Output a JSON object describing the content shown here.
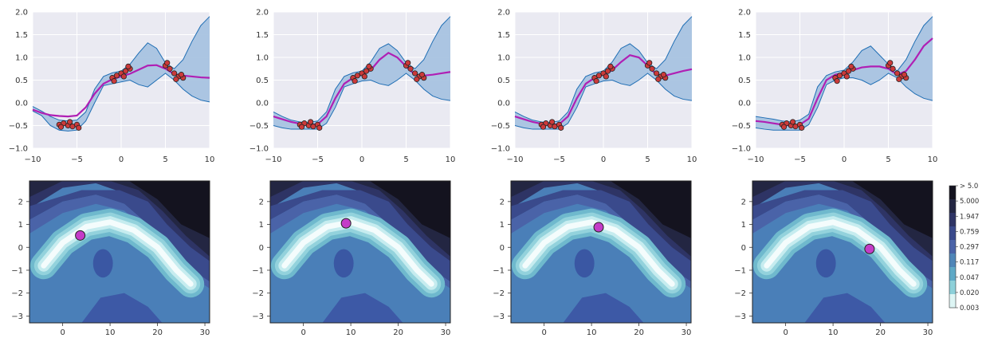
{
  "chart_data": [
    {
      "type": "line",
      "xlim": [
        -10,
        10
      ],
      "ylim": [
        -1.0,
        2.0
      ],
      "xticks": [
        "-10",
        "-5",
        "0",
        "5",
        "10"
      ],
      "yticks": [
        "-1.0",
        "-0.5",
        "0.0",
        "0.5",
        "1.0",
        "1.5",
        "2.0"
      ],
      "grid": true,
      "x": [
        -10,
        -9,
        -8,
        -7,
        -6,
        -5,
        -4,
        -3,
        -2,
        -1,
        0,
        1,
        2,
        3,
        4,
        5,
        6,
        7,
        8,
        9,
        10
      ],
      "mean": [
        -0.15,
        -0.22,
        -0.27,
        -0.29,
        -0.3,
        -0.28,
        -0.1,
        0.2,
        0.42,
        0.52,
        0.58,
        0.64,
        0.73,
        0.82,
        0.83,
        0.75,
        0.63,
        0.6,
        0.58,
        0.56,
        0.55
      ],
      "sample": [
        -0.15,
        -0.22,
        -0.27,
        -0.29,
        -0.3,
        -0.28,
        -0.1,
        0.2,
        0.42,
        0.52,
        0.58,
        0.64,
        0.73,
        0.82,
        0.83,
        0.75,
        0.63,
        0.6,
        0.58,
        0.56,
        0.55
      ],
      "upper": [
        -0.08,
        -0.18,
        -0.3,
        -0.38,
        -0.4,
        -0.38,
        -0.2,
        0.3,
        0.58,
        0.66,
        0.7,
        0.85,
        1.1,
        1.32,
        1.2,
        0.88,
        0.75,
        0.95,
        1.35,
        1.7,
        1.9
      ],
      "lower": [
        -0.18,
        -0.28,
        -0.5,
        -0.6,
        -0.62,
        -0.6,
        -0.4,
        0.0,
        0.38,
        0.42,
        0.46,
        0.5,
        0.4,
        0.35,
        0.5,
        0.65,
        0.5,
        0.3,
        0.15,
        0.06,
        0.02
      ],
      "observations": [
        [
          -7.0,
          -0.48
        ],
        [
          -6.5,
          -0.45
        ],
        [
          -6.0,
          -0.5
        ],
        [
          -5.5,
          -0.52
        ],
        [
          -5.0,
          -0.48
        ],
        [
          -4.8,
          -0.55
        ],
        [
          -6.8,
          -0.53
        ],
        [
          -5.8,
          -0.42
        ],
        [
          -1.0,
          0.55
        ],
        [
          -0.5,
          0.6
        ],
        [
          0.0,
          0.65
        ],
        [
          0.5,
          0.7
        ],
        [
          1.0,
          0.75
        ],
        [
          -0.8,
          0.48
        ],
        [
          0.3,
          0.58
        ],
        [
          0.8,
          0.8
        ],
        [
          5.0,
          0.82
        ],
        [
          5.5,
          0.75
        ],
        [
          6.0,
          0.65
        ],
        [
          6.5,
          0.58
        ],
        [
          7.0,
          0.55
        ],
        [
          5.2,
          0.88
        ],
        [
          6.2,
          0.52
        ],
        [
          6.8,
          0.62
        ]
      ]
    },
    {
      "type": "line",
      "xlim": [
        -10,
        10
      ],
      "ylim": [
        -1.0,
        2.0
      ],
      "xticks": [
        "-10",
        "-5",
        "0",
        "5",
        "10"
      ],
      "yticks": [
        "-1.0",
        "-0.5",
        "0.0",
        "0.5",
        "1.0",
        "1.5",
        "2.0"
      ],
      "grid": true,
      "x": [
        -10,
        -9,
        -8,
        -7,
        -6,
        -5,
        -4,
        -3,
        -2,
        -1,
        0,
        1,
        2,
        3,
        4,
        5,
        6,
        7,
        8,
        9,
        10
      ],
      "mean": [
        -0.3,
        -0.36,
        -0.42,
        -0.46,
        -0.48,
        -0.47,
        -0.3,
        0.1,
        0.42,
        0.55,
        0.62,
        0.72,
        0.95,
        1.1,
        1.0,
        0.8,
        0.62,
        0.6,
        0.62,
        0.65,
        0.68
      ],
      "sample": [
        -0.3,
        -0.36,
        -0.42,
        -0.46,
        -0.48,
        -0.47,
        -0.3,
        0.1,
        0.42,
        0.55,
        0.62,
        0.72,
        0.95,
        1.1,
        1.0,
        0.8,
        0.62,
        0.6,
        0.62,
        0.65,
        0.68
      ],
      "upper": [
        -0.2,
        -0.3,
        -0.38,
        -0.42,
        -0.43,
        -0.4,
        -0.2,
        0.3,
        0.58,
        0.66,
        0.7,
        0.9,
        1.2,
        1.3,
        1.15,
        0.88,
        0.75,
        0.95,
        1.35,
        1.7,
        1.9
      ],
      "lower": [
        -0.5,
        -0.55,
        -0.58,
        -0.58,
        -0.58,
        -0.58,
        -0.45,
        -0.1,
        0.35,
        0.42,
        0.48,
        0.5,
        0.42,
        0.38,
        0.5,
        0.65,
        0.5,
        0.3,
        0.15,
        0.08,
        0.05
      ],
      "observations": [
        [
          -7.0,
          -0.48
        ],
        [
          -6.5,
          -0.45
        ],
        [
          -6.0,
          -0.5
        ],
        [
          -5.5,
          -0.52
        ],
        [
          -5.0,
          -0.48
        ],
        [
          -4.8,
          -0.55
        ],
        [
          -6.8,
          -0.53
        ],
        [
          -5.8,
          -0.42
        ],
        [
          -1.0,
          0.55
        ],
        [
          -0.5,
          0.6
        ],
        [
          0.0,
          0.65
        ],
        [
          0.5,
          0.7
        ],
        [
          1.0,
          0.75
        ],
        [
          -0.8,
          0.48
        ],
        [
          0.3,
          0.58
        ],
        [
          0.8,
          0.8
        ],
        [
          5.0,
          0.82
        ],
        [
          5.5,
          0.75
        ],
        [
          6.0,
          0.65
        ],
        [
          6.5,
          0.58
        ],
        [
          7.0,
          0.55
        ],
        [
          5.2,
          0.88
        ],
        [
          6.2,
          0.52
        ],
        [
          6.8,
          0.62
        ]
      ]
    },
    {
      "type": "line",
      "xlim": [
        -10,
        10
      ],
      "ylim": [
        -1.0,
        2.0
      ],
      "xticks": [
        "-10",
        "-5",
        "0",
        "5",
        "10"
      ],
      "yticks": [
        "-1.0",
        "-0.5",
        "0.0",
        "0.5",
        "1.0",
        "1.5",
        "2.0"
      ],
      "grid": true,
      "x": [
        -10,
        -9,
        -8,
        -7,
        -6,
        -5,
        -4,
        -3,
        -2,
        -1,
        0,
        1,
        2,
        3,
        4,
        5,
        6,
        7,
        8,
        9,
        10
      ],
      "mean": [
        -0.3,
        -0.36,
        -0.42,
        -0.46,
        -0.48,
        -0.47,
        -0.3,
        0.1,
        0.42,
        0.55,
        0.62,
        0.72,
        0.9,
        1.05,
        1.0,
        0.82,
        0.62,
        0.6,
        0.65,
        0.7,
        0.74
      ],
      "sample": [
        -0.3,
        -0.36,
        -0.42,
        -0.46,
        -0.48,
        -0.47,
        -0.3,
        0.1,
        0.42,
        0.55,
        0.62,
        0.72,
        0.9,
        1.05,
        1.0,
        0.82,
        0.62,
        0.6,
        0.65,
        0.7,
        0.74
      ],
      "upper": [
        -0.2,
        -0.3,
        -0.38,
        -0.42,
        -0.43,
        -0.4,
        -0.2,
        0.3,
        0.58,
        0.66,
        0.7,
        0.9,
        1.2,
        1.3,
        1.15,
        0.88,
        0.75,
        0.95,
        1.35,
        1.7,
        1.9
      ],
      "lower": [
        -0.5,
        -0.55,
        -0.58,
        -0.58,
        -0.58,
        -0.58,
        -0.45,
        -0.1,
        0.35,
        0.42,
        0.48,
        0.5,
        0.42,
        0.38,
        0.5,
        0.65,
        0.5,
        0.3,
        0.15,
        0.08,
        0.05
      ],
      "observations": [
        [
          -7.0,
          -0.48
        ],
        [
          -6.5,
          -0.45
        ],
        [
          -6.0,
          -0.5
        ],
        [
          -5.5,
          -0.52
        ],
        [
          -5.0,
          -0.48
        ],
        [
          -4.8,
          -0.55
        ],
        [
          -6.8,
          -0.53
        ],
        [
          -5.8,
          -0.42
        ],
        [
          -1.0,
          0.55
        ],
        [
          -0.5,
          0.6
        ],
        [
          0.0,
          0.65
        ],
        [
          0.5,
          0.7
        ],
        [
          1.0,
          0.75
        ],
        [
          -0.8,
          0.48
        ],
        [
          0.3,
          0.58
        ],
        [
          0.8,
          0.8
        ],
        [
          5.0,
          0.82
        ],
        [
          5.5,
          0.75
        ],
        [
          6.0,
          0.65
        ],
        [
          6.5,
          0.58
        ],
        [
          7.0,
          0.55
        ],
        [
          5.2,
          0.88
        ],
        [
          6.2,
          0.52
        ],
        [
          6.8,
          0.62
        ]
      ]
    },
    {
      "type": "line",
      "xlim": [
        -10,
        10
      ],
      "ylim": [
        -1.0,
        2.0
      ],
      "xticks": [
        "-10",
        "-5",
        "0",
        "5",
        "10"
      ],
      "yticks": [
        "-1.0",
        "-0.5",
        "0.0",
        "0.5",
        "1.0",
        "1.5",
        "2.0"
      ],
      "grid": true,
      "x": [
        -10,
        -9,
        -8,
        -7,
        -6,
        -5,
        -4,
        -3,
        -2,
        -1,
        0,
        1,
        2,
        3,
        4,
        5,
        6,
        7,
        8,
        9,
        10
      ],
      "mean": [
        -0.4,
        -0.42,
        -0.45,
        -0.48,
        -0.5,
        -0.48,
        -0.35,
        0.1,
        0.5,
        0.62,
        0.66,
        0.72,
        0.78,
        0.8,
        0.8,
        0.75,
        0.62,
        0.7,
        0.95,
        1.25,
        1.42
      ],
      "sample": [
        -0.4,
        -0.42,
        -0.45,
        -0.48,
        -0.5,
        -0.48,
        -0.35,
        0.1,
        0.5,
        0.62,
        0.66,
        0.72,
        0.78,
        0.8,
        0.8,
        0.75,
        0.62,
        0.7,
        0.95,
        1.25,
        1.42
      ],
      "upper": [
        -0.3,
        -0.33,
        -0.36,
        -0.4,
        -0.42,
        -0.38,
        -0.25,
        0.35,
        0.6,
        0.68,
        0.72,
        0.9,
        1.15,
        1.25,
        1.05,
        0.85,
        0.7,
        0.95,
        1.35,
        1.7,
        1.9
      ],
      "lower": [
        -0.55,
        -0.58,
        -0.6,
        -0.6,
        -0.6,
        -0.6,
        -0.48,
        -0.1,
        0.4,
        0.5,
        0.55,
        0.55,
        0.5,
        0.4,
        0.5,
        0.65,
        0.55,
        0.35,
        0.2,
        0.1,
        0.05
      ],
      "observations": [
        [
          -7.0,
          -0.48
        ],
        [
          -6.5,
          -0.45
        ],
        [
          -6.0,
          -0.5
        ],
        [
          -5.5,
          -0.52
        ],
        [
          -5.0,
          -0.48
        ],
        [
          -4.8,
          -0.55
        ],
        [
          -6.8,
          -0.53
        ],
        [
          -5.8,
          -0.42
        ],
        [
          -1.0,
          0.55
        ],
        [
          -0.5,
          0.6
        ],
        [
          0.0,
          0.65
        ],
        [
          0.5,
          0.7
        ],
        [
          1.0,
          0.75
        ],
        [
          -0.8,
          0.48
        ],
        [
          0.3,
          0.58
        ],
        [
          0.8,
          0.8
        ],
        [
          5.0,
          0.82
        ],
        [
          5.5,
          0.75
        ],
        [
          6.0,
          0.65
        ],
        [
          6.5,
          0.58
        ],
        [
          7.0,
          0.55
        ],
        [
          5.2,
          0.88
        ],
        [
          6.2,
          0.52
        ],
        [
          6.8,
          0.62
        ]
      ]
    },
    {
      "type": "heatmap",
      "xlim": [
        -7,
        31
      ],
      "ylim": [
        -3.3,
        2.9
      ],
      "xticks": [
        "0",
        "10",
        "20",
        "30"
      ],
      "yticks": [
        "−3",
        "−2",
        "−1",
        "0",
        "1",
        "2"
      ],
      "ridge": [
        [
          -4,
          -0.8
        ],
        [
          0,
          0.2
        ],
        [
          5,
          0.9
        ],
        [
          10,
          1.1
        ],
        [
          15,
          0.75
        ],
        [
          20,
          0.0
        ],
        [
          24,
          -1.0
        ],
        [
          27,
          -1.6
        ]
      ],
      "marker": [
        3.7,
        0.52
      ]
    },
    {
      "type": "heatmap",
      "xlim": [
        -7,
        31
      ],
      "ylim": [
        -3.3,
        2.9
      ],
      "xticks": [
        "0",
        "10",
        "20",
        "30"
      ],
      "yticks": [
        "−3",
        "−2",
        "−1",
        "0",
        "1",
        "2"
      ],
      "ridge": [
        [
          -4,
          -0.8
        ],
        [
          0,
          0.2
        ],
        [
          5,
          0.9
        ],
        [
          10,
          1.1
        ],
        [
          15,
          0.75
        ],
        [
          20,
          0.0
        ],
        [
          24,
          -1.0
        ],
        [
          27,
          -1.6
        ]
      ],
      "marker": [
        9.0,
        1.05
      ]
    },
    {
      "type": "heatmap",
      "xlim": [
        -7,
        31
      ],
      "ylim": [
        -3.3,
        2.9
      ],
      "xticks": [
        "0",
        "10",
        "20",
        "30"
      ],
      "yticks": [
        "−3",
        "−2",
        "−1",
        "0",
        "1",
        "2"
      ],
      "ridge": [
        [
          -4,
          -0.8
        ],
        [
          0,
          0.2
        ],
        [
          5,
          0.9
        ],
        [
          10,
          1.1
        ],
        [
          15,
          0.75
        ],
        [
          20,
          0.0
        ],
        [
          24,
          -1.0
        ],
        [
          27,
          -1.6
        ]
      ],
      "marker": [
        11.5,
        0.88
      ]
    },
    {
      "type": "heatmap",
      "xlim": [
        -7,
        31
      ],
      "ylim": [
        -3.3,
        2.9
      ],
      "xticks": [
        "0",
        "10",
        "20",
        "30"
      ],
      "yticks": [
        "−3",
        "−2",
        "−1",
        "0",
        "1",
        "2"
      ],
      "ridge": [
        [
          -4,
          -0.8
        ],
        [
          0,
          0.2
        ],
        [
          5,
          0.9
        ],
        [
          10,
          1.1
        ],
        [
          15,
          0.75
        ],
        [
          20,
          0.0
        ],
        [
          24,
          -1.0
        ],
        [
          27,
          -1.6
        ]
      ],
      "marker": [
        17.7,
        -0.07
      ]
    }
  ],
  "colorbar": {
    "labels": [
      "> 5.0",
      "5.000",
      "1.947",
      "0.759",
      "0.297",
      "0.117",
      "0.047",
      "0.020",
      "0.003"
    ],
    "colors": [
      "#14131f",
      "#232642",
      "#2e3465",
      "#3a4a8c",
      "#4a63a8",
      "#4f86b8",
      "#5fa9c6",
      "#8dd0d9",
      "#ddf5f4"
    ]
  },
  "colors": {
    "plot_bg": "#eaeaf2",
    "band": "#a8c3e0",
    "band_edge": "#1f6eb4",
    "mean": "#b01fb4",
    "points": "#cc3a3a",
    "marker": "#c43cc8"
  }
}
